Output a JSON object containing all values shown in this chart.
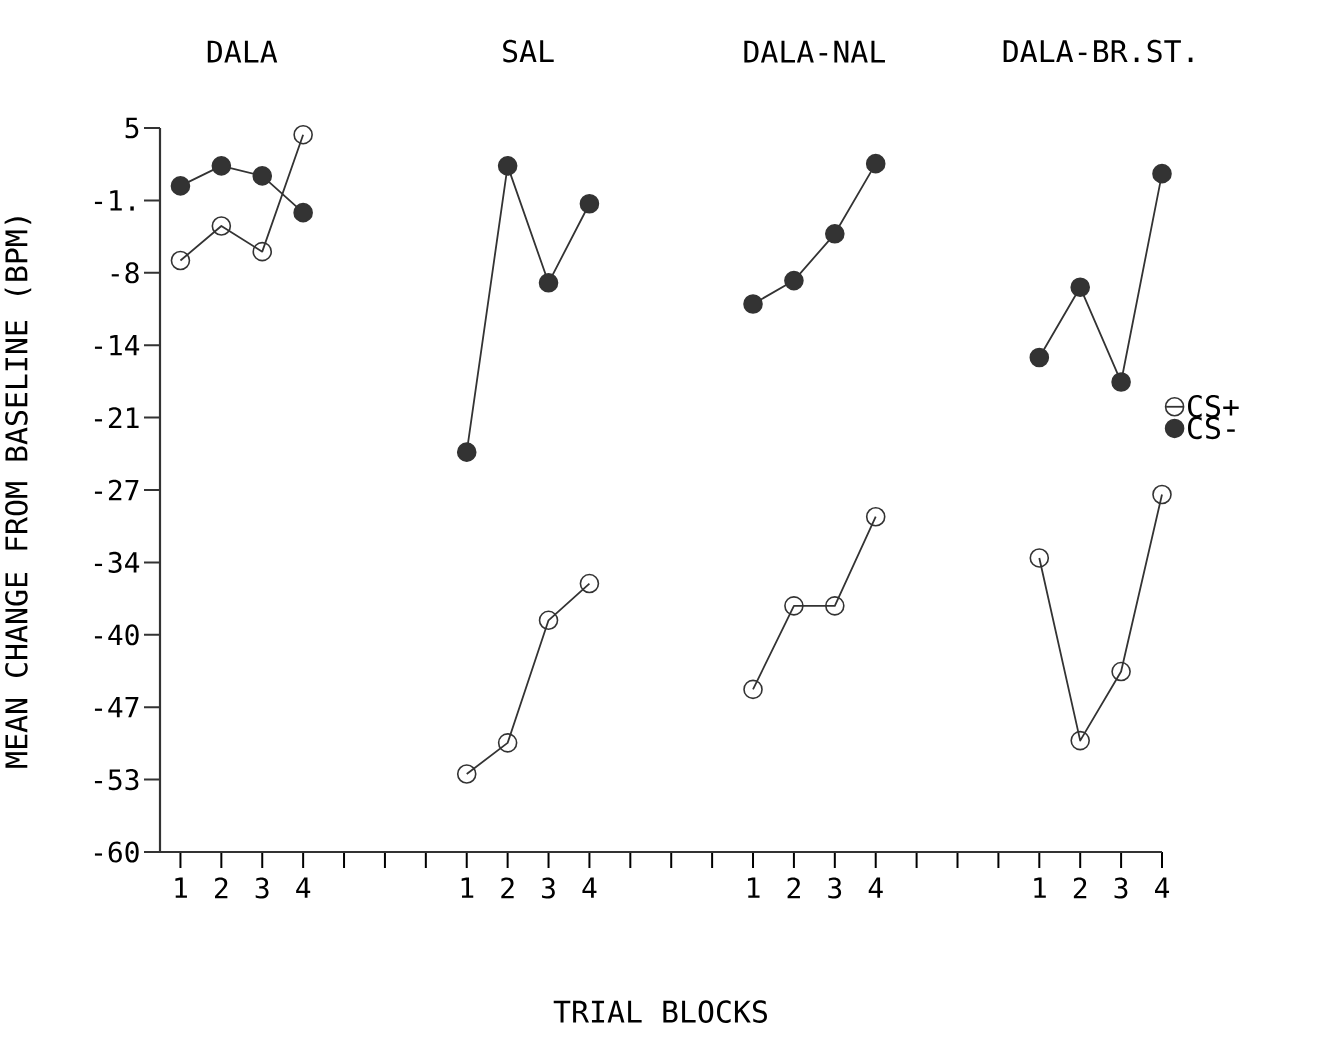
{
  "chart_data": {
    "type": "line",
    "xlabel": "TRIAL BLOCKS",
    "ylabel": "MEAN CHANGE FROM BASELINE (BPM)",
    "annotations": [
      "DALA",
      "SAL",
      "DALA-NAL",
      "DALA-BR.ST."
    ],
    "categories": [
      "1",
      "2",
      "3",
      "4",
      null,
      null,
      null,
      "1",
      "2",
      "3",
      "4",
      null,
      null,
      null,
      "1",
      "2",
      "3",
      "4",
      null,
      null,
      null,
      "1",
      "2",
      "3",
      "4"
    ],
    "ylim": [
      -60,
      5
    ],
    "yticks": [
      5,
      {
        "value": -1.5,
        "label": "-1."
      },
      -8,
      {
        "value": -14.5,
        "label": "-14"
      },
      -21,
      {
        "value": -27.5,
        "label": "-27"
      },
      -34,
      {
        "value": -40.5,
        "label": "-40"
      },
      -47,
      {
        "value": -53.5,
        "label": "-53"
      },
      -60
    ],
    "legend": "right",
    "line_style": "solid",
    "series": [
      {
        "name": "CS+",
        "color": "#333333",
        "marker": "circle",
        "values": [
          -6.9,
          -3.8,
          -6.1,
          4.4,
          null,
          null,
          null,
          null,
          null,
          null,
          null,
          null,
          null,
          null,
          null,
          null,
          null,
          null,
          null,
          null,
          null,
          null,
          null,
          null,
          null
        ]
      },
      {
        "name": "CS-",
        "color": "#333333",
        "marker": "dot",
        "values": [
          -0.2,
          1.6,
          0.7,
          -2.6,
          null,
          null,
          null,
          null,
          null,
          null,
          null,
          null,
          null,
          null,
          null,
          null,
          null,
          null,
          null,
          null,
          null,
          null,
          null,
          null,
          null
        ]
      },
      {
        "color": "#333333",
        "marker": "circle",
        "values": [
          null,
          null,
          null,
          null,
          null,
          null,
          null,
          -53,
          -50.2,
          -39.2,
          -35.9,
          null,
          null,
          null,
          null,
          null,
          null,
          null,
          null,
          null,
          null,
          null,
          null,
          null,
          null
        ]
      },
      {
        "color": "#333333",
        "marker": "dot",
        "values": [
          null,
          null,
          null,
          null,
          null,
          null,
          null,
          -24.1,
          1.6,
          -8.9,
          -1.8,
          null,
          null,
          null,
          null,
          null,
          null,
          null,
          null,
          null,
          null,
          null,
          null,
          null,
          null
        ]
      },
      {
        "color": "#333333",
        "marker": "circle",
        "values": [
          null,
          null,
          null,
          null,
          null,
          null,
          null,
          null,
          null,
          null,
          null,
          null,
          null,
          null,
          -45.4,
          -37.9,
          -37.9,
          -29.9,
          null,
          null,
          null,
          null,
          null,
          null,
          null
        ]
      },
      {
        "color": "#333333",
        "marker": "dot",
        "values": [
          null,
          null,
          null,
          null,
          null,
          null,
          null,
          null,
          null,
          null,
          null,
          null,
          null,
          null,
          -10.8,
          -8.7,
          -4.5,
          1.8,
          null,
          null,
          null,
          null,
          null,
          null,
          null
        ]
      },
      {
        "color": "#333333",
        "marker": "circle",
        "values": [
          null,
          null,
          null,
          null,
          null,
          null,
          null,
          null,
          null,
          null,
          null,
          null,
          null,
          null,
          null,
          null,
          null,
          null,
          null,
          null,
          null,
          -33.6,
          -50,
          -43.8,
          -27.9
        ]
      },
      {
        "color": "#333333",
        "marker": "dot",
        "values": [
          null,
          null,
          null,
          null,
          null,
          null,
          null,
          null,
          null,
          null,
          null,
          null,
          null,
          null,
          null,
          null,
          null,
          null,
          null,
          null,
          null,
          -15.6,
          -9.3,
          -17.8,
          0.9
        ]
      }
    ]
  }
}
